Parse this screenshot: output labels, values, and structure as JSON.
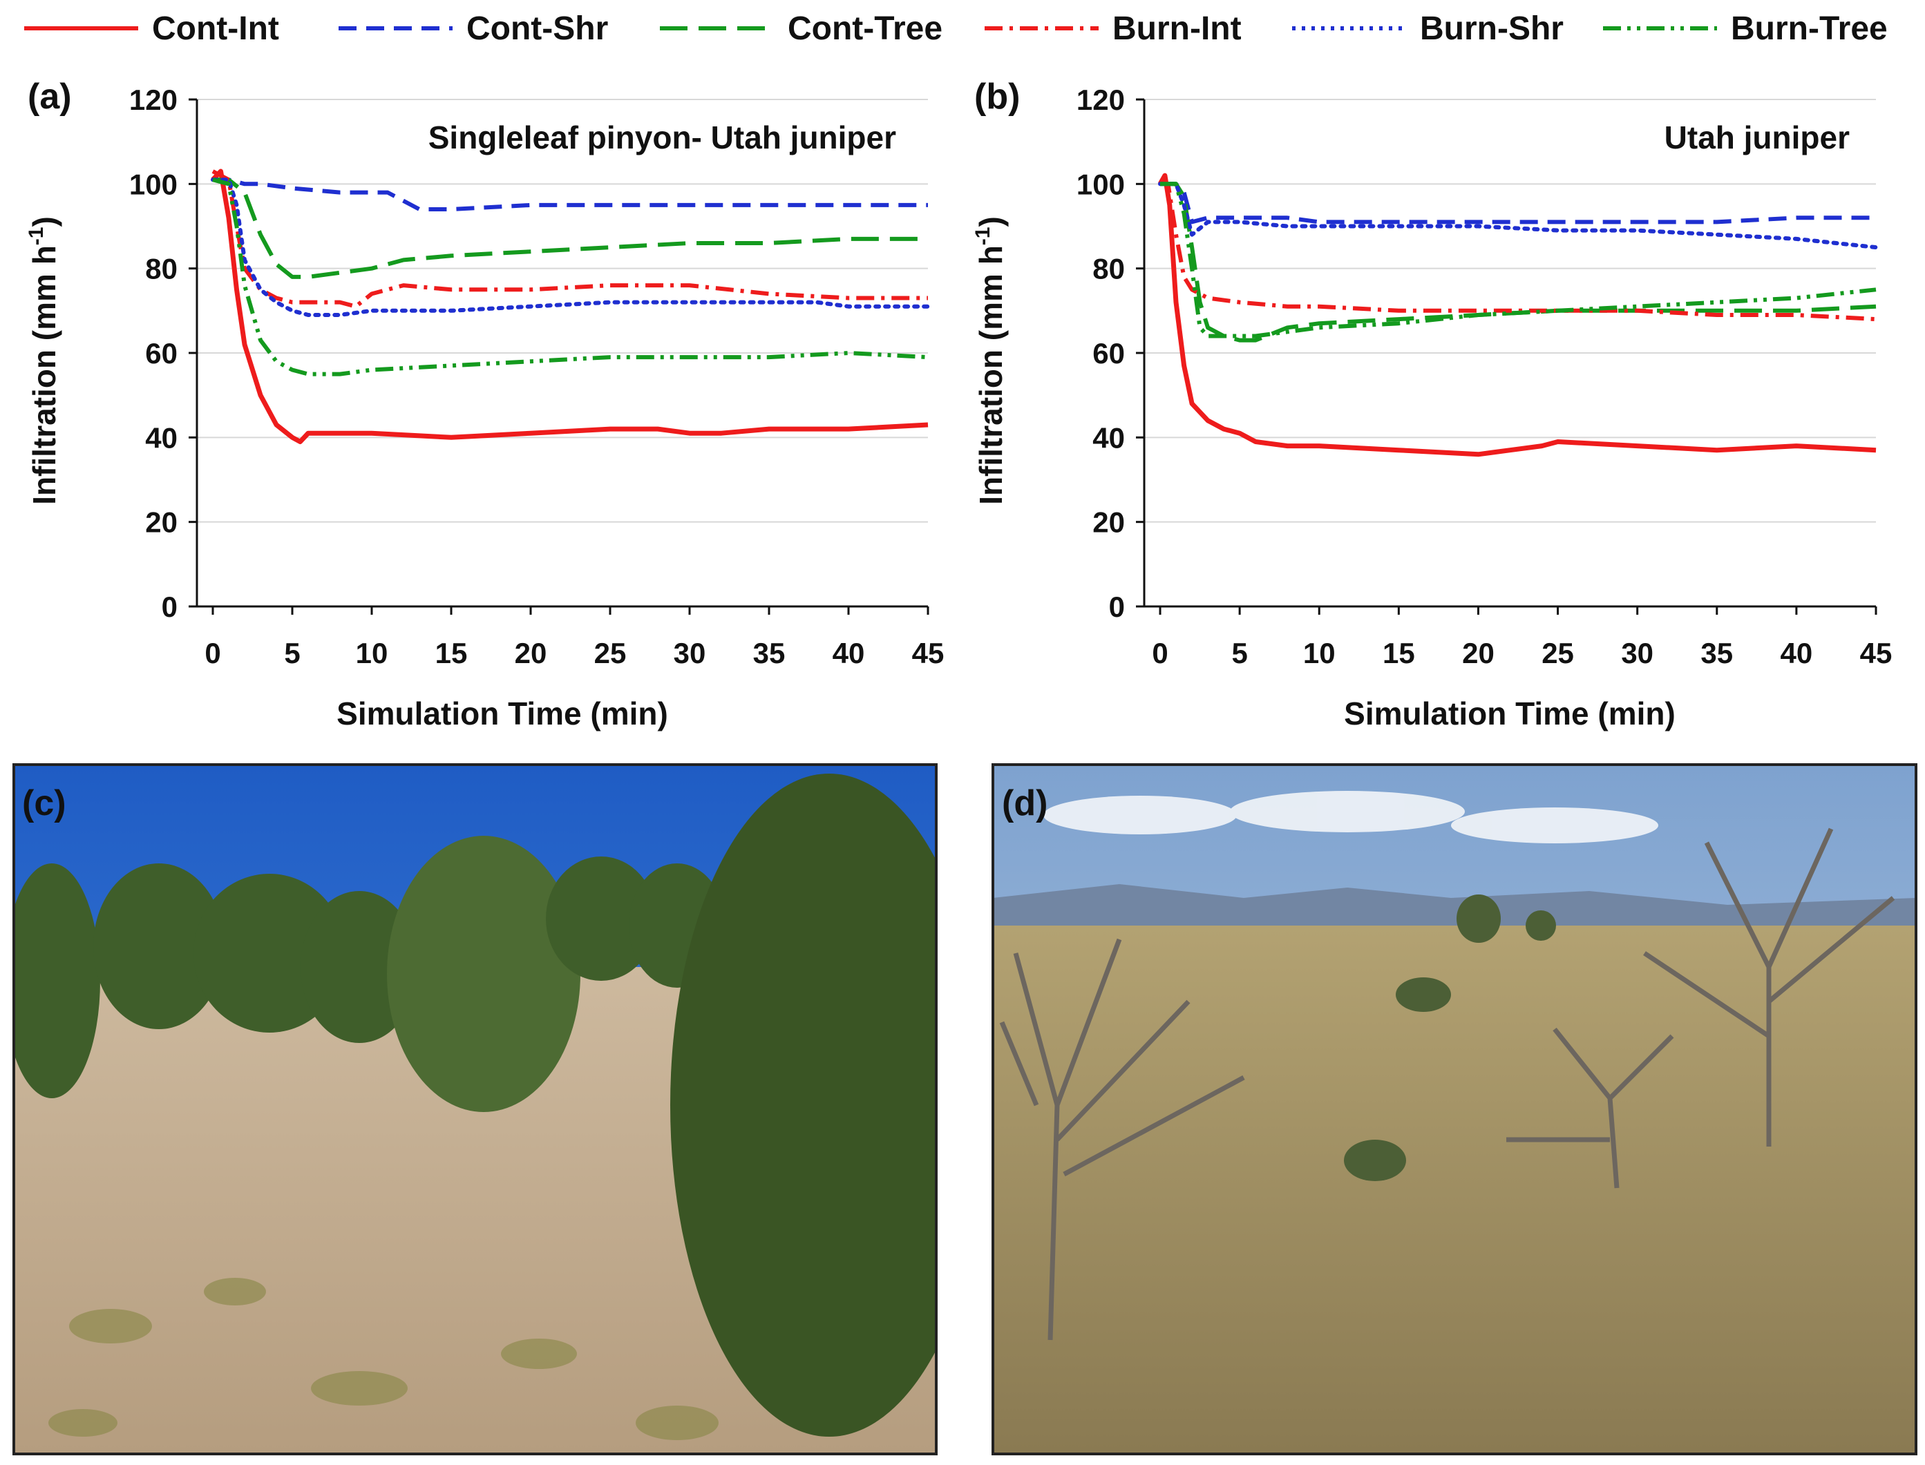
{
  "legend": [
    {
      "name": "Cont-Int",
      "color": "#ee1c1c",
      "dash": "solid"
    },
    {
      "name": "Cont-Shr",
      "color": "#1f2fd0",
      "dash": "dash"
    },
    {
      "name": "Cont-Tree",
      "color": "#149a1e",
      "dash": "longdash"
    },
    {
      "name": "Burn-Int",
      "color": "#ee1c1c",
      "dash": "dashdot"
    },
    {
      "name": "Burn-Shr",
      "color": "#1f2fd0",
      "dash": "dot"
    },
    {
      "name": "Burn-Tree",
      "color": "#149a1e",
      "dash": "dashdotdot"
    }
  ],
  "chart_data": [
    {
      "panel": "(a)",
      "type": "line",
      "title": "Singleleaf pinyon- Utah juniper",
      "xlabel": "Simulation Time (min)",
      "ylabel": "Infiltration (mm h-1)",
      "ylabel_main": "Infiltration (mm h",
      "ylabel_sup": "-1",
      "ylabel_end": ")",
      "xlim": [
        -1,
        45
      ],
      "ylim": [
        0,
        120
      ],
      "xticks": [
        0,
        5,
        10,
        15,
        20,
        25,
        30,
        35,
        40,
        45
      ],
      "yticks": [
        0,
        20,
        40,
        60,
        80,
        100,
        120
      ],
      "grid": true,
      "series": [
        {
          "name": "Cont-Int",
          "x": [
            0,
            0.5,
            1,
            1.5,
            2,
            3,
            4,
            5,
            5.5,
            6,
            8,
            10,
            15,
            20,
            25,
            28,
            30,
            32,
            35,
            40,
            45
          ],
          "values": [
            101,
            103,
            92,
            75,
            62,
            50,
            43,
            40,
            39,
            41,
            41,
            41,
            40,
            41,
            42,
            42,
            41,
            41,
            42,
            42,
            43
          ]
        },
        {
          "name": "Cont-Shr",
          "x": [
            0,
            1,
            2,
            3,
            5,
            8,
            10,
            11,
            12,
            13,
            15,
            20,
            25,
            30,
            35,
            40,
            45
          ],
          "values": [
            101,
            101,
            100,
            100,
            99,
            98,
            98,
            98,
            96,
            94,
            94,
            95,
            95,
            95,
            95,
            95,
            95
          ]
        },
        {
          "name": "Cont-Tree",
          "x": [
            0,
            1,
            2,
            3,
            4,
            5,
            6,
            8,
            10,
            12,
            15,
            20,
            25,
            30,
            35,
            40,
            45
          ],
          "values": [
            101,
            101,
            98,
            88,
            81,
            78,
            78,
            79,
            80,
            82,
            83,
            84,
            85,
            86,
            86,
            87,
            87
          ]
        },
        {
          "name": "Burn-Int",
          "x": [
            0,
            1,
            1.5,
            2,
            3,
            4,
            5,
            6,
            8,
            9,
            10,
            12,
            15,
            20,
            25,
            30,
            35,
            40,
            45
          ],
          "values": [
            103,
            101,
            90,
            80,
            75,
            73,
            72,
            72,
            72,
            71,
            74,
            76,
            75,
            75,
            76,
            76,
            74,
            73,
            73
          ]
        },
        {
          "name": "Burn-Shr",
          "x": [
            0,
            1,
            1.5,
            2,
            3,
            4,
            5,
            6,
            8,
            10,
            15,
            20,
            25,
            30,
            35,
            38,
            40,
            45
          ],
          "values": [
            101,
            101,
            95,
            82,
            75,
            72,
            70,
            69,
            69,
            70,
            70,
            71,
            72,
            72,
            72,
            72,
            71,
            71
          ]
        },
        {
          "name": "Burn-Tree",
          "x": [
            0,
            1,
            1.5,
            2,
            3,
            4,
            5,
            6,
            8,
            10,
            15,
            20,
            25,
            30,
            35,
            40,
            45
          ],
          "values": [
            101,
            100,
            90,
            76,
            63,
            58,
            56,
            55,
            55,
            56,
            57,
            58,
            59,
            59,
            59,
            60,
            59
          ]
        }
      ]
    },
    {
      "panel": "(b)",
      "type": "line",
      "title": "Utah juniper",
      "xlabel": "Simulation Time (min)",
      "ylabel": "Infiltration (mm h-1)",
      "ylabel_main": "Infiltration (mm h",
      "ylabel_sup": "-1",
      "ylabel_end": ")",
      "xlim": [
        -1,
        45
      ],
      "ylim": [
        0,
        120
      ],
      "xticks": [
        0,
        5,
        10,
        15,
        20,
        25,
        30,
        35,
        40,
        45
      ],
      "yticks": [
        0,
        20,
        40,
        60,
        80,
        100,
        120
      ],
      "grid": true,
      "series": [
        {
          "name": "Cont-Int",
          "x": [
            0,
            0.3,
            0.6,
            1,
            1.5,
            2,
            3,
            4,
            5,
            6,
            8,
            10,
            15,
            20,
            22,
            24,
            25,
            30,
            35,
            40,
            45
          ],
          "values": [
            100,
            102,
            95,
            72,
            57,
            48,
            44,
            42,
            41,
            39,
            38,
            38,
            37,
            36,
            37,
            38,
            39,
            38,
            37,
            38,
            37
          ]
        },
        {
          "name": "Cont-Shr",
          "x": [
            0,
            1,
            1.5,
            2,
            3,
            5,
            8,
            10,
            15,
            20,
            25,
            30,
            35,
            40,
            45
          ],
          "values": [
            100,
            100,
            98,
            91,
            92,
            92,
            92,
            91,
            91,
            91,
            91,
            91,
            91,
            92,
            92
          ]
        },
        {
          "name": "Cont-Tree",
          "x": [
            0,
            1,
            1.5,
            2,
            2.5,
            3,
            4,
            5,
            6,
            8,
            10,
            15,
            20,
            25,
            30,
            35,
            40,
            45
          ],
          "values": [
            100,
            100,
            97,
            85,
            72,
            66,
            64,
            63,
            63,
            66,
            67,
            68,
            69,
            70,
            70,
            70,
            70,
            71
          ]
        },
        {
          "name": "Burn-Int",
          "x": [
            0,
            0.5,
            1,
            1.5,
            2,
            3,
            5,
            8,
            10,
            15,
            20,
            25,
            30,
            35,
            40,
            45
          ],
          "values": [
            101,
            100,
            88,
            78,
            75,
            73,
            72,
            71,
            71,
            70,
            70,
            70,
            70,
            69,
            69,
            68
          ]
        },
        {
          "name": "Burn-Shr",
          "x": [
            0,
            1,
            1.5,
            2,
            3,
            5,
            8,
            10,
            15,
            20,
            25,
            30,
            35,
            40,
            45
          ],
          "values": [
            100,
            100,
            95,
            88,
            91,
            91,
            90,
            90,
            90,
            90,
            89,
            89,
            88,
            87,
            85
          ]
        },
        {
          "name": "Burn-Tree",
          "x": [
            0,
            1,
            1.5,
            2,
            2.5,
            3,
            4,
            5,
            6,
            8,
            10,
            15,
            20,
            25,
            30,
            35,
            40,
            45
          ],
          "values": [
            100,
            100,
            93,
            80,
            66,
            64,
            64,
            64,
            64,
            65,
            66,
            67,
            69,
            70,
            71,
            72,
            73,
            75
          ]
        }
      ]
    }
  ],
  "photos": [
    {
      "label": "(c)",
      "scene": "juniper woodland",
      "sky": "#1d63c8",
      "ground": "#c9b49a"
    },
    {
      "label": "(d)",
      "scene": "burned woodland",
      "sky": "#8fb0d6",
      "ground": "#a79462"
    }
  ]
}
